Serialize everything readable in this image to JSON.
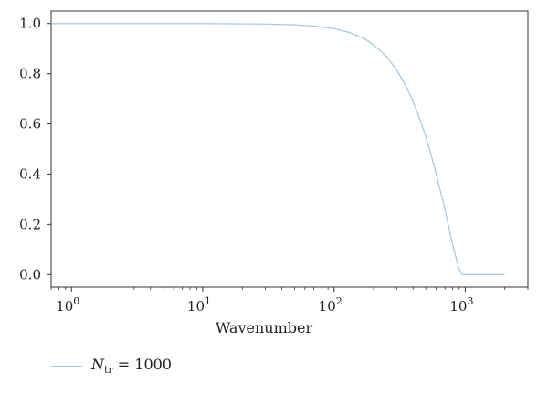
{
  "chart_data": {
    "type": "line",
    "xlabel": "Wavenumber",
    "ylabel": "",
    "xscale": "log",
    "xlim": [
      0.7,
      3000
    ],
    "ylim": [
      -0.05,
      1.05
    ],
    "x_ticks": [
      {
        "value": 1,
        "base": "10",
        "exp": "0"
      },
      {
        "value": 10,
        "base": "10",
        "exp": "1"
      },
      {
        "value": 100,
        "base": "10",
        "exp": "2"
      },
      {
        "value": 1000,
        "base": "10",
        "exp": "3"
      }
    ],
    "y_ticks": [
      "0.0",
      "0.2",
      "0.4",
      "0.6",
      "0.8",
      "1.0"
    ],
    "grid": false,
    "legend_position": "bottom-left",
    "series": [
      {
        "name": "N_tr = 1000",
        "color": "#a6c9e2",
        "x": [
          0.7,
          1,
          10,
          30,
          50,
          70,
          100,
          130,
          170,
          200,
          250,
          300,
          350,
          400,
          450,
          500,
          550,
          600,
          700,
          800,
          900,
          950,
          1000,
          1500,
          2000
        ],
        "y": [
          1.0,
          1.0,
          1.0,
          0.998,
          0.995,
          0.99,
          0.98,
          0.965,
          0.94,
          0.915,
          0.87,
          0.815,
          0.755,
          0.69,
          0.62,
          0.55,
          0.475,
          0.4,
          0.26,
          0.12,
          0.02,
          0.0,
          0.0,
          0.0,
          0.0
        ]
      }
    ]
  },
  "legend": {
    "name_main": "N",
    "name_sub": "tr",
    "name_rest": " = 1000"
  }
}
